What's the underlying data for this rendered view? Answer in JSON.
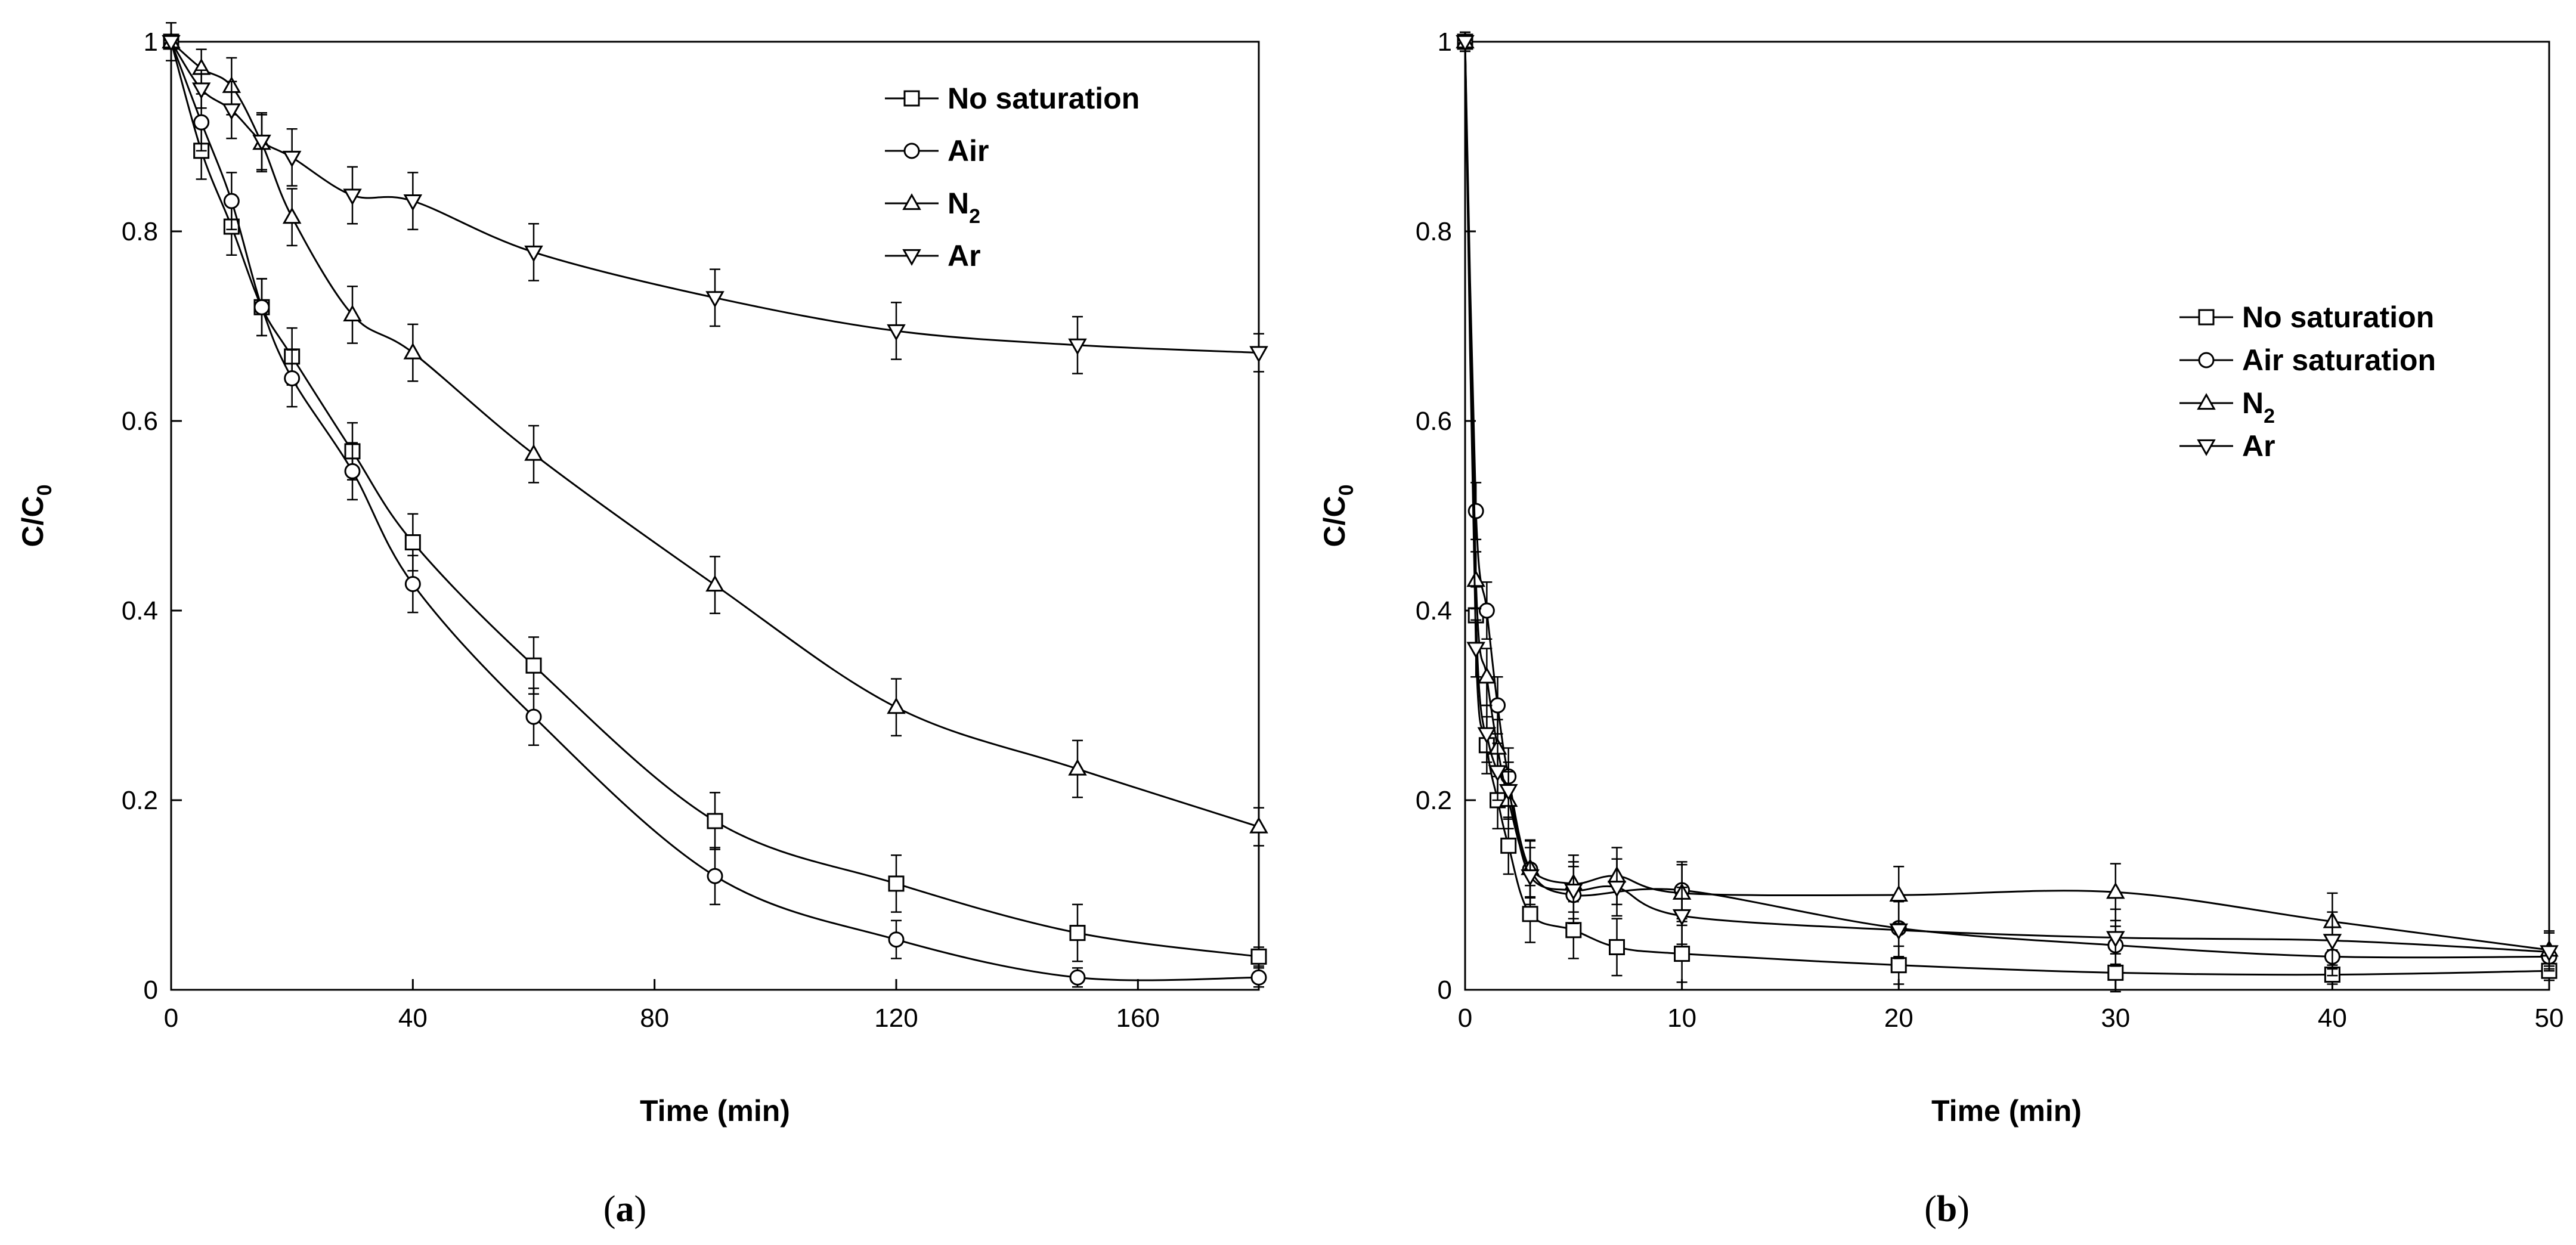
{
  "chart_data": [
    {
      "type": "line",
      "panel": "a",
      "caption": "(a)",
      "caption_parts": [
        "(",
        "a",
        ")"
      ],
      "xlabel": "Time (min)",
      "ylabel": "C/C",
      "ylabel_sub": "0",
      "xlim": [
        0,
        180
      ],
      "ylim": [
        0,
        1
      ],
      "xticks": [
        0,
        40,
        80,
        120,
        160
      ],
      "yticks": [
        0,
        0.2,
        0.4,
        0.6,
        0.8,
        1
      ],
      "ytick_labels": [
        "0",
        "0.2",
        "0.4",
        "0.6",
        "0.8",
        "1"
      ],
      "series": [
        {
          "name": "No saturation",
          "name_main": "No saturation",
          "name_sub": "",
          "marker": "square",
          "x": [
            0,
            5,
            10,
            15,
            20,
            30,
            40,
            60,
            90,
            120,
            150,
            180
          ],
          "y": [
            1,
            0.885,
            0.805,
            0.72,
            0.668,
            0.568,
            0.472,
            0.342,
            0.178,
            0.112,
            0.06,
            0.035
          ],
          "err": [
            0.02,
            0.03,
            0.03,
            0.03,
            0.03,
            0.03,
            0.03,
            0.03,
            0.03,
            0.03,
            0.03,
            0.01
          ]
        },
        {
          "name": "Air",
          "name_main": "Air",
          "name_sub": "",
          "marker": "circle",
          "x": [
            0,
            5,
            10,
            15,
            20,
            30,
            40,
            60,
            90,
            120,
            150,
            180
          ],
          "y": [
            1,
            0.915,
            0.832,
            0.72,
            0.645,
            0.547,
            0.428,
            0.288,
            0.12,
            0.053,
            0.013,
            0.013
          ],
          "err": [
            0.02,
            0.03,
            0.03,
            0.03,
            0.03,
            0.03,
            0.03,
            0.03,
            0.03,
            0.02,
            0.01,
            0.01
          ]
        },
        {
          "name": "N2",
          "name_main": "N",
          "name_sub": "2",
          "marker": "triangle-up",
          "x": [
            0,
            5,
            10,
            15,
            20,
            30,
            40,
            60,
            90,
            120,
            150,
            180
          ],
          "y": [
            1,
            0.972,
            0.953,
            0.893,
            0.815,
            0.712,
            0.672,
            0.565,
            0.427,
            0.298,
            0.233,
            0.172
          ],
          "err": [
            0.02,
            0.02,
            0.03,
            0.03,
            0.03,
            0.03,
            0.03,
            0.03,
            0.03,
            0.03,
            0.03,
            0.02
          ]
        },
        {
          "name": "Ar",
          "name_main": "Ar",
          "name_sub": "",
          "marker": "triangle-down",
          "x": [
            0,
            5,
            10,
            15,
            20,
            30,
            40,
            60,
            90,
            120,
            150,
            180
          ],
          "y": [
            1,
            0.95,
            0.928,
            0.895,
            0.878,
            0.838,
            0.832,
            0.778,
            0.73,
            0.695,
            0.68,
            0.672
          ],
          "err": [
            0.02,
            0.02,
            0.03,
            0.03,
            0.03,
            0.03,
            0.03,
            0.03,
            0.03,
            0.03,
            0.03,
            0.02
          ]
        }
      ],
      "legend": "top-right",
      "grid": false
    },
    {
      "type": "line",
      "panel": "b",
      "caption": "(b)",
      "caption_parts": [
        "(",
        "b",
        ")"
      ],
      "xlabel": "Time (min)",
      "ylabel": "C/C",
      "ylabel_sub": "0",
      "xlim": [
        0,
        50
      ],
      "ylim": [
        0,
        1
      ],
      "xticks": [
        0,
        10,
        20,
        30,
        40,
        50
      ],
      "yticks": [
        0,
        0.2,
        0.4,
        0.6,
        0.8,
        1
      ],
      "ytick_labels": [
        "0",
        "0.2",
        "0.4",
        "0.6",
        "0.8",
        "1"
      ],
      "series": [
        {
          "name": "No saturation",
          "name_main": "No saturation",
          "name_sub": "",
          "marker": "square",
          "x": [
            0,
            0.5,
            1,
            1.5,
            2,
            3,
            5,
            7,
            10,
            20,
            30,
            40,
            50
          ],
          "y": [
            1,
            0.395,
            0.258,
            0.2,
            0.152,
            0.08,
            0.063,
            0.045,
            0.038,
            0.026,
            0.018,
            0.016,
            0.02
          ],
          "err": [
            0.01,
            0.03,
            0.03,
            0.03,
            0.03,
            0.03,
            0.03,
            0.03,
            0.03,
            0.02,
            0.02,
            0.01,
            0.01
          ]
        },
        {
          "name": "Air saturation",
          "name_main": "Air saturation",
          "name_sub": "",
          "marker": "circle",
          "x": [
            0,
            0.5,
            1,
            1.5,
            2,
            3,
            5,
            10,
            20,
            30,
            40,
            50
          ],
          "y": [
            1,
            0.505,
            0.4,
            0.3,
            0.225,
            0.127,
            0.1,
            0.105,
            0.065,
            0.047,
            0.035,
            0.035
          ],
          "err": [
            0.01,
            0.03,
            0.03,
            0.03,
            0.03,
            0.03,
            0.03,
            0.03,
            0.03,
            0.02,
            0.02,
            0.01
          ]
        },
        {
          "name": "N2",
          "name_main": "N",
          "name_sub": "2",
          "marker": "triangle-up",
          "x": [
            0,
            0.5,
            1,
            1.5,
            2,
            3,
            5,
            7,
            10,
            20,
            30,
            40,
            50
          ],
          "y": [
            1,
            0.432,
            0.33,
            0.255,
            0.2,
            0.128,
            0.112,
            0.12,
            0.102,
            0.1,
            0.103,
            0.072,
            0.042
          ],
          "err": [
            0.01,
            0.03,
            0.03,
            0.03,
            0.03,
            0.03,
            0.03,
            0.03,
            0.03,
            0.03,
            0.03,
            0.03,
            0.02
          ]
        },
        {
          "name": "Ar",
          "name_main": "Ar",
          "name_sub": "",
          "marker": "triangle-down",
          "x": [
            0,
            0.5,
            1,
            1.5,
            2,
            3,
            5,
            7,
            10,
            20,
            30,
            40,
            50
          ],
          "y": [
            1,
            0.36,
            0.27,
            0.23,
            0.21,
            0.12,
            0.105,
            0.108,
            0.078,
            0.063,
            0.055,
            0.052,
            0.04
          ],
          "err": [
            0.01,
            0.03,
            0.03,
            0.03,
            0.03,
            0.03,
            0.03,
            0.03,
            0.03,
            0.03,
            0.03,
            0.03,
            0.02
          ]
        }
      ],
      "legend": "center-right",
      "grid": false
    }
  ]
}
